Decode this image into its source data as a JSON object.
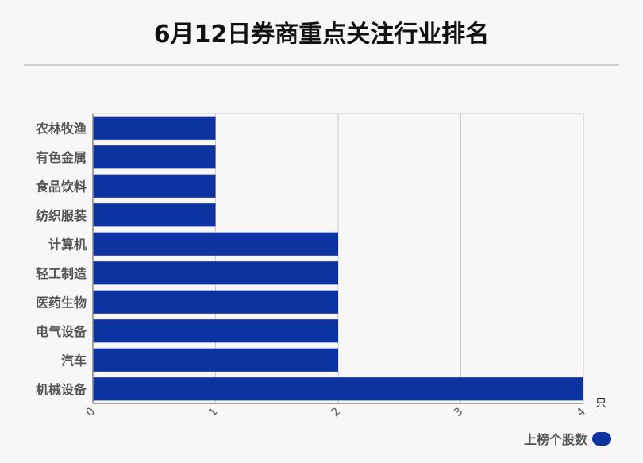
{
  "title": "6月12日券商重点关注行业排名",
  "legend": {
    "label": "上榜个股数"
  },
  "colors": {
    "bar": "#0c33a0",
    "grid": "#cccccc",
    "axis": "#888888"
  },
  "chart_data": {
    "type": "bar",
    "orientation": "horizontal",
    "categories": [
      "农林牧渔",
      "有色金属",
      "食品饮料",
      "纺织服装",
      "计算机",
      "轻工制造",
      "医药生物",
      "电气设备",
      "汽车",
      "机械设备"
    ],
    "series": [
      {
        "name": "上榜个股数",
        "values": [
          1,
          1,
          1,
          1,
          2,
          2,
          2,
          2,
          2,
          4
        ]
      }
    ],
    "xlim": [
      0,
      4
    ],
    "xticks": [
      "0",
      "1",
      "2",
      "3",
      "4"
    ],
    "xunit": "只",
    "grid": true,
    "legend_position": "bottom-right"
  }
}
